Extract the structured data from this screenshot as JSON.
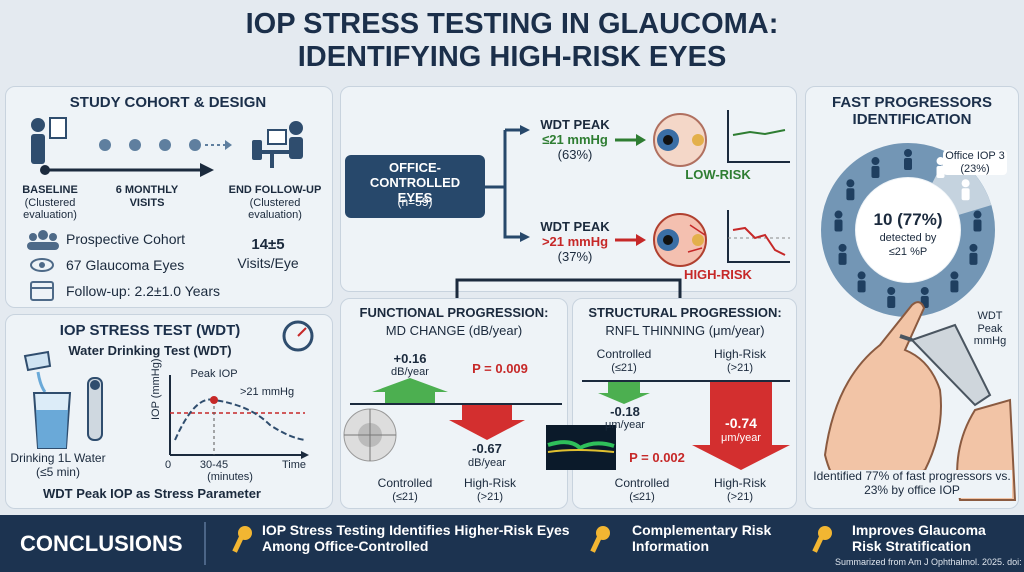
{
  "title": [
    "IOP STRESS TESTING IN GLAUCOMA:",
    "IDENTIFYING HIGH-RISK EYES"
  ],
  "cohort": {
    "heading": "STUDY COHORT & DESIGN",
    "timeline": [
      {
        "label": "BASELINE",
        "note": "(Clustered evaluation)"
      },
      {
        "label": "6 MONTHLY VISITS"
      },
      {
        "label": "END FOLLOW-UP",
        "note": "(Clustered evaluation)"
      }
    ],
    "facts": [
      "Prospective Cohort",
      "67 Glaucoma Eyes",
      "Follow-up: 2.2±1.0 Years"
    ],
    "visits": "14±5",
    "visits_unit": "Visits/Eye"
  },
  "stress_test": {
    "heading": "IOP STRESS TEST (WDT)",
    "subheading": "Water Drinking Test (WDT)",
    "drink": "Drinking 1L Water",
    "drink_time": "(≤5 min)",
    "graph": {
      "y_label": "IOP (mmHg)",
      "peak": "Peak IOP",
      "threshold": ">21 mmHg",
      "x_start": "0",
      "x_peak": "30-45",
      "x_unit": "(minutes)",
      "x_label": "Time"
    },
    "footer": "WDT Peak IOP as Stress Parameter"
  },
  "flow": {
    "source": "OFFICE-CONTROLLED EYES",
    "source_n": "(n=59)",
    "branches": [
      {
        "label": "WDT PEAK",
        "threshold": "≤21 mmHg",
        "share": "(63%)",
        "risk": "LOW-RISK"
      },
      {
        "label": "WDT PEAK",
        "threshold": ">21 mmHg",
        "share": "(37%)",
        "risk": "HIGH-RISK"
      }
    ]
  },
  "functional": {
    "heading": "FUNCTIONAL PROGRESSION:",
    "subheading": "MD CHANGE (dB/year)",
    "controlled": "+0.16",
    "controlled_unit": "dB/year",
    "high_risk": "-0.67",
    "high_risk_unit": "dB/year",
    "p": "P = 0.009",
    "groups": [
      {
        "name": "Controlled",
        "range": "(≤21)"
      },
      {
        "name": "High-Risk",
        "range": "(>21)"
      }
    ]
  },
  "structural": {
    "heading": "STRUCTURAL PROGRESSION:",
    "subheading": "RNFL THINNING (μm/year)",
    "controlled": "-0.18",
    "controlled_unit": "μm/year",
    "high_risk": "-0.74",
    "high_risk_unit": "μm/year",
    "p": "P = 0.002",
    "groups_top": [
      {
        "name": "Controlled",
        "range": "(≤21)"
      },
      {
        "name": "High-Risk",
        "range": "(>21)"
      }
    ],
    "groups": [
      {
        "name": "Controlled",
        "range": "(≤21)"
      },
      {
        "name": "High-Risk",
        "range": "(>21)"
      }
    ]
  },
  "fast": {
    "heading": "FAST PROGRESSORS IDENTIFICATION",
    "office": "Office IOP 3 (23%)",
    "detected": "10 (77%)",
    "detected_note": "detected by",
    "detected_by": "≤21 %P",
    "wdt": "WDT Peak mmHg",
    "summary": "Identified 77% of fast progressors vs. 23% by office IOP"
  },
  "conclusions": {
    "heading": "CONCLUSIONS",
    "items": [
      "IOP Stress Testing Identifies Higher-Risk Eyes Among Office-Controlled",
      "Complementary Risk Information",
      "Improves Glaucoma Risk Stratification"
    ],
    "source": "Summarized from Am J Ophthalmol. 2025. doi: ..."
  }
}
